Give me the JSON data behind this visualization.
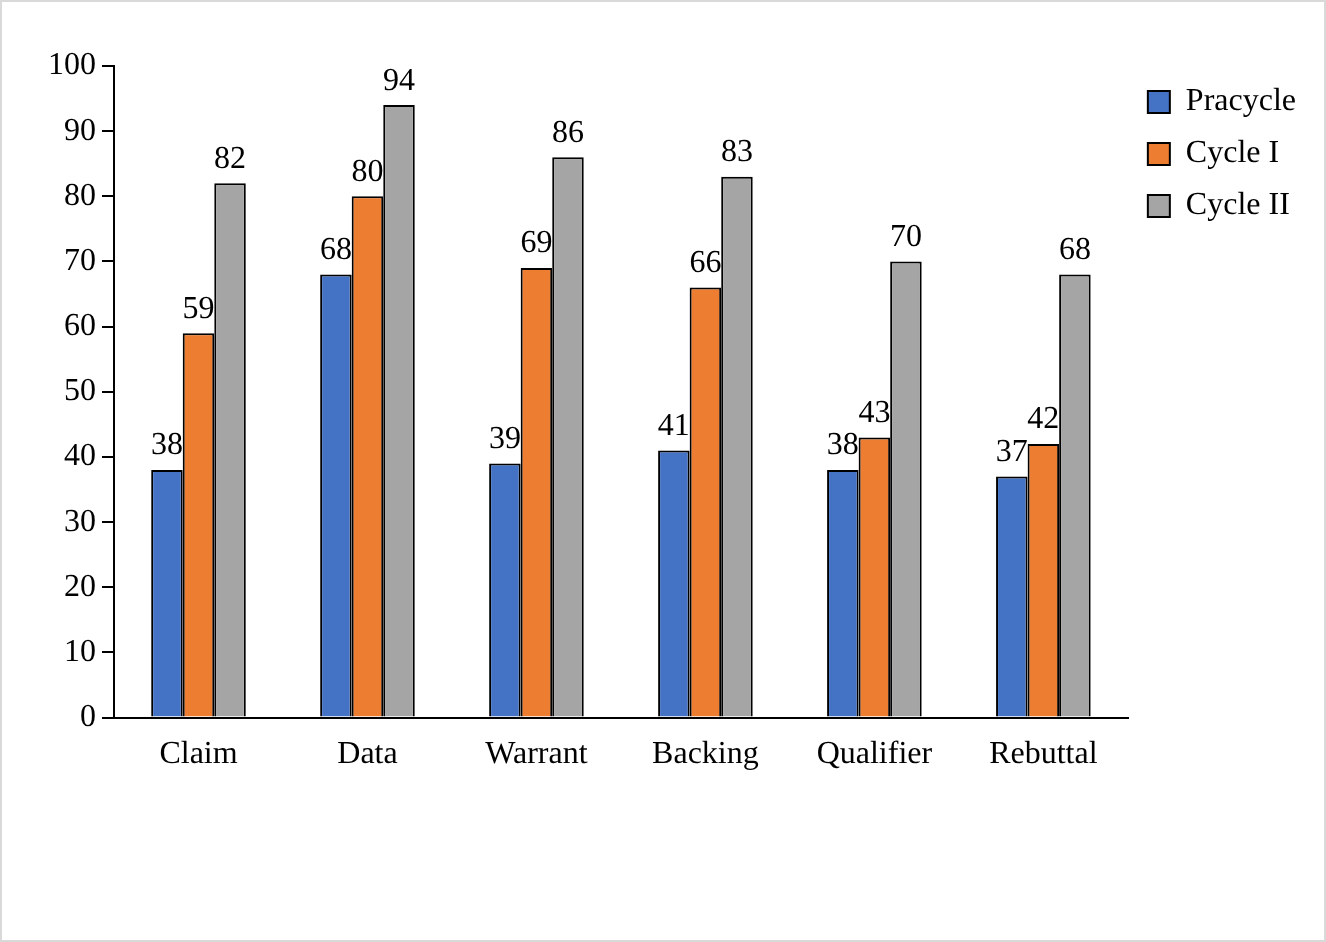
{
  "chart_data": {
    "type": "bar",
    "categories": [
      "Claim",
      "Data",
      "Warrant",
      "Backing",
      "Qualifier",
      "Rebuttal"
    ],
    "series": [
      {
        "name": "Pracycle",
        "color": "#4472c4",
        "values": [
          38,
          68,
          39,
          41,
          38,
          37
        ]
      },
      {
        "name": "Cycle I",
        "color": "#ed7d31",
        "values": [
          59,
          80,
          69,
          66,
          43,
          42
        ]
      },
      {
        "name": "Cycle II",
        "color": "#a5a5a5",
        "values": [
          82,
          94,
          86,
          83,
          70,
          68
        ]
      }
    ],
    "ylim": [
      0,
      100
    ],
    "yticks": [
      0,
      10,
      20,
      30,
      40,
      50,
      60,
      70,
      80,
      90,
      100
    ],
    "grid": false,
    "legend": "top right",
    "data_labels": true
  }
}
